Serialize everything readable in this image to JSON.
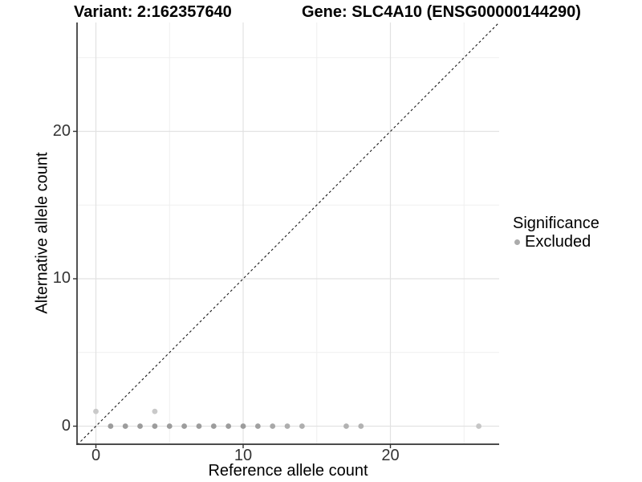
{
  "figure": {
    "title_left": "Variant: 2:162357640",
    "title_right": "Gene: SLC4A10 (ENSG00000144290)"
  },
  "axes": {
    "x_label": "Reference allele count",
    "y_label": "Alternative allele count",
    "x_tick_labels": [
      "0",
      "10",
      "20"
    ],
    "y_tick_labels": [
      "0",
      "10",
      "20"
    ]
  },
  "legend": {
    "title": "Significance",
    "items": [
      {
        "label": "Excluded",
        "color": "#ababab"
      }
    ]
  },
  "chart_data": {
    "type": "scatter",
    "title_left": "Variant: 2:162357640",
    "title_right": "Gene: SLC4A10 (ENSG00000144290)",
    "xlabel": "Reference allele count",
    "ylabel": "Alternative allele count",
    "xlim": [
      -1.3,
      27.4
    ],
    "ylim": [
      -1.3,
      27.4
    ],
    "x_major_ticks": [
      0,
      10,
      20
    ],
    "y_major_ticks": [
      0,
      10,
      20
    ],
    "x_minor_gridlines": [
      5,
      15,
      25
    ],
    "y_minor_gridlines": [
      5,
      15,
      25
    ],
    "grid": "on",
    "legend_position": "right",
    "identity_line": {
      "equation": "y = x",
      "style": "dashed",
      "color": "#1a1a1a"
    },
    "series": [
      {
        "name": "Excluded",
        "points": [
          {
            "x": 0,
            "y": 1,
            "color": "#c9c9c9"
          },
          {
            "x": 4,
            "y": 1,
            "color": "#c9c9c9"
          },
          {
            "x": 1,
            "y": 0,
            "color": "#9c9c9c"
          },
          {
            "x": 2,
            "y": 0,
            "color": "#9c9c9c"
          },
          {
            "x": 3,
            "y": 0,
            "color": "#9c9c9c"
          },
          {
            "x": 4,
            "y": 0,
            "color": "#9c9c9c"
          },
          {
            "x": 5,
            "y": 0,
            "color": "#9c9c9c"
          },
          {
            "x": 6,
            "y": 0,
            "color": "#9c9c9c"
          },
          {
            "x": 7,
            "y": 0,
            "color": "#9c9c9c"
          },
          {
            "x": 8,
            "y": 0,
            "color": "#9c9c9c"
          },
          {
            "x": 9,
            "y": 0,
            "color": "#9c9c9c"
          },
          {
            "x": 10,
            "y": 0,
            "color": "#9c9c9c"
          },
          {
            "x": 11,
            "y": 0,
            "color": "#a0a0a0"
          },
          {
            "x": 12,
            "y": 0,
            "color": "#a8a8a8"
          },
          {
            "x": 13,
            "y": 0,
            "color": "#aeaeae"
          },
          {
            "x": 14,
            "y": 0,
            "color": "#aeaeae"
          },
          {
            "x": 17,
            "y": 0,
            "color": "#b2b2b2"
          },
          {
            "x": 18,
            "y": 0,
            "color": "#b2b2b2"
          },
          {
            "x": 26,
            "y": 0,
            "color": "#c6c6c6"
          }
        ]
      }
    ],
    "colors": {
      "major_grid": "#e2e2e2",
      "minor_grid": "#efefef",
      "axis_line": "#333333",
      "point_base": "#9c9c9c"
    }
  }
}
